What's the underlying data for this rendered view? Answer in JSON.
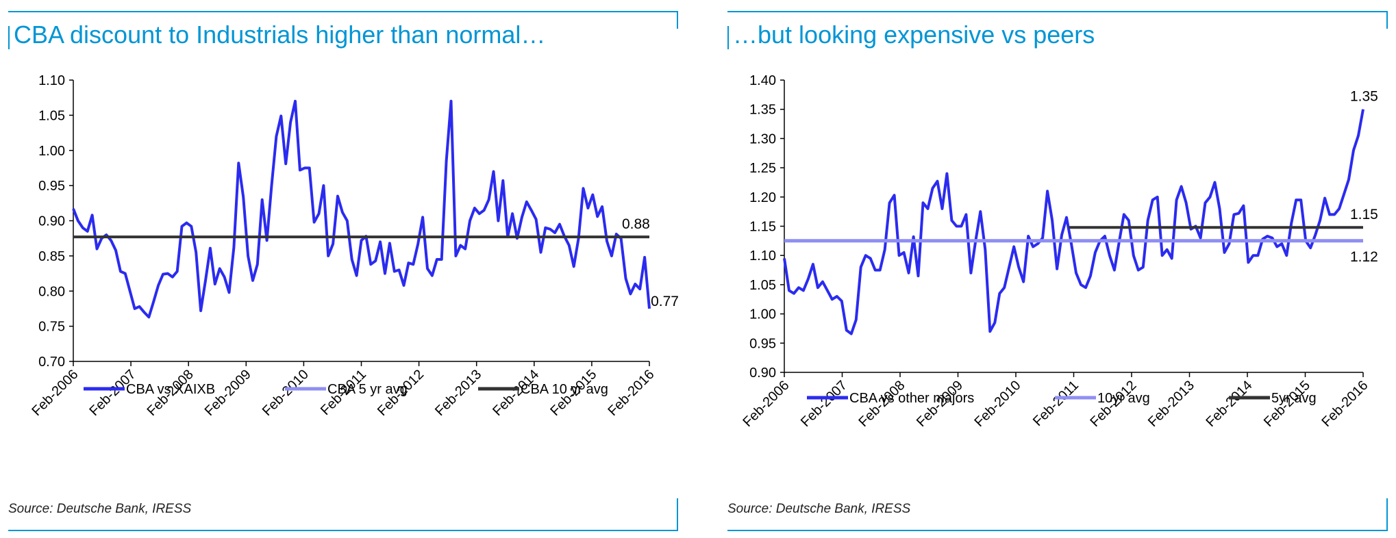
{
  "chart_data": [
    {
      "type": "line",
      "title": "CBA discount to Industrials higher than normal…",
      "source": "Source: Deutsche Bank, IRESS",
      "ylim": [
        0.7,
        1.1
      ],
      "yticks": [
        "0.70",
        "0.75",
        "0.80",
        "0.85",
        "0.90",
        "0.95",
        "1.00",
        "1.05",
        "1.10"
      ],
      "xlim": [
        2006.083,
        2016.083
      ],
      "xticks": [
        "Feb-2006",
        "Feb-2007",
        "Feb-2008",
        "Feb-2009",
        "Feb-2010",
        "Feb-2011",
        "Feb-2012",
        "Feb-2013",
        "Feb-2014",
        "Feb-2015",
        "Feb-2016"
      ],
      "annotations": [
        {
          "text": "0.88",
          "x": 2015.85,
          "y": 0.877,
          "anchor": "above"
        },
        {
          "text": "0.77",
          "x": 2016.06,
          "y": 0.775,
          "anchor": "right"
        }
      ],
      "series": [
        {
          "name": "CBA vs XAIXB",
          "color": "#2b2bf0",
          "width": 4,
          "y": [
            0.917,
            0.9,
            0.89,
            0.885,
            0.908,
            0.86,
            0.875,
            0.88,
            0.872,
            0.858,
            0.828,
            0.825,
            0.8,
            0.775,
            0.778,
            0.77,
            0.763,
            0.785,
            0.808,
            0.824,
            0.825,
            0.82,
            0.828,
            0.892,
            0.897,
            0.892,
            0.855,
            0.772,
            0.815,
            0.861,
            0.81,
            0.832,
            0.82,
            0.798,
            0.862,
            0.982,
            0.934,
            0.85,
            0.815,
            0.838,
            0.93,
            0.872,
            0.95,
            1.02,
            1.049,
            0.981,
            1.04,
            1.07,
            0.972,
            0.975,
            0.975,
            0.898,
            0.91,
            0.95,
            0.85,
            0.867,
            0.935,
            0.912,
            0.9,
            0.845,
            0.822,
            0.872,
            0.878,
            0.838,
            0.843,
            0.87,
            0.825,
            0.868,
            0.828,
            0.83,
            0.808,
            0.84,
            0.838,
            0.867,
            0.905,
            0.832,
            0.822,
            0.845,
            0.845,
            0.985,
            1.07,
            0.85,
            0.865,
            0.86,
            0.9,
            0.918,
            0.91,
            0.915,
            0.93,
            0.97,
            0.9,
            0.957,
            0.877,
            0.91,
            0.875,
            0.905,
            0.927,
            0.915,
            0.902,
            0.855,
            0.89,
            0.888,
            0.883,
            0.895,
            0.878,
            0.865,
            0.835,
            0.875,
            0.946,
            0.918,
            0.937,
            0.906,
            0.92,
            0.871,
            0.85,
            0.881,
            0.875,
            0.818,
            0.796,
            0.81,
            0.803,
            0.848,
            0.775
          ]
        },
        {
          "name": "CBA 5 yr avg",
          "color": "#8e8ef2",
          "width": 4,
          "y": []
        },
        {
          "name": "CBA 10 yr avg",
          "color": "#333333",
          "width": 4,
          "y": [
            0.877,
            0.877
          ],
          "x": [
            2006.083,
            2016.083
          ]
        }
      ]
    },
    {
      "type": "line",
      "title": "…but looking expensive vs peers",
      "source": "Source: Deutsche Bank, IRESS",
      "ylim": [
        0.9,
        1.4
      ],
      "yticks": [
        "0.90",
        "0.95",
        "1.00",
        "1.05",
        "1.10",
        "1.15",
        "1.20",
        "1.25",
        "1.30",
        "1.35",
        "1.40"
      ],
      "xlim": [
        2006.083,
        2016.083
      ],
      "xticks": [
        "Feb-2006",
        "Feb-2007",
        "Feb-2008",
        "Feb-2009",
        "Feb-2010",
        "Feb-2011",
        "Feb-2012",
        "Feb-2013",
        "Feb-2014",
        "Feb-2015",
        "Feb-2016"
      ],
      "annotations": [
        {
          "text": "1.35",
          "x": 2016.1,
          "y": 1.35,
          "anchor": "above"
        },
        {
          "text": "1.15",
          "x": 2016.1,
          "y": 1.148,
          "anchor": "above"
        },
        {
          "text": "1.12",
          "x": 2016.1,
          "y": 1.125,
          "anchor": "below"
        }
      ],
      "series": [
        {
          "name": "CBA vs other majors",
          "color": "#2b2bf0",
          "width": 4,
          "y": [
            1.095,
            1.04,
            1.035,
            1.045,
            1.04,
            1.06,
            1.085,
            1.045,
            1.055,
            1.04,
            1.025,
            1.03,
            1.022,
            0.972,
            0.966,
            0.99,
            1.08,
            1.1,
            1.095,
            1.075,
            1.075,
            1.11,
            1.19,
            1.203,
            1.1,
            1.105,
            1.07,
            1.132,
            1.065,
            1.19,
            1.18,
            1.215,
            1.227,
            1.18,
            1.24,
            1.16,
            1.15,
            1.15,
            1.17,
            1.07,
            1.125,
            1.175,
            1.11,
            0.97,
            0.985,
            1.035,
            1.045,
            1.08,
            1.115,
            1.08,
            1.055,
            1.133,
            1.115,
            1.12,
            1.13,
            1.21,
            1.16,
            1.077,
            1.135,
            1.165,
            1.12,
            1.07,
            1.05,
            1.045,
            1.065,
            1.105,
            1.125,
            1.133,
            1.1,
            1.075,
            1.123,
            1.17,
            1.16,
            1.1,
            1.075,
            1.08,
            1.16,
            1.195,
            1.2,
            1.1,
            1.11,
            1.095,
            1.195,
            1.218,
            1.19,
            1.145,
            1.15,
            1.13,
            1.19,
            1.2,
            1.225,
            1.18,
            1.105,
            1.12,
            1.17,
            1.172,
            1.185,
            1.088,
            1.1,
            1.1,
            1.128,
            1.133,
            1.13,
            1.115,
            1.12,
            1.1,
            1.155,
            1.195,
            1.195,
            1.125,
            1.113,
            1.135,
            1.16,
            1.198,
            1.17,
            1.17,
            1.18,
            1.205,
            1.23,
            1.28,
            1.305,
            1.35
          ]
        },
        {
          "name": "10yr avg",
          "color": "#8e8ef2",
          "width": 5,
          "y": [
            1.125,
            1.125
          ],
          "x": [
            2006.083,
            2016.083
          ]
        },
        {
          "name": "5yr avg",
          "color": "#333333",
          "width": 4,
          "y": [
            1.148,
            1.148
          ],
          "x": [
            2011.0,
            2016.083
          ]
        }
      ]
    }
  ]
}
